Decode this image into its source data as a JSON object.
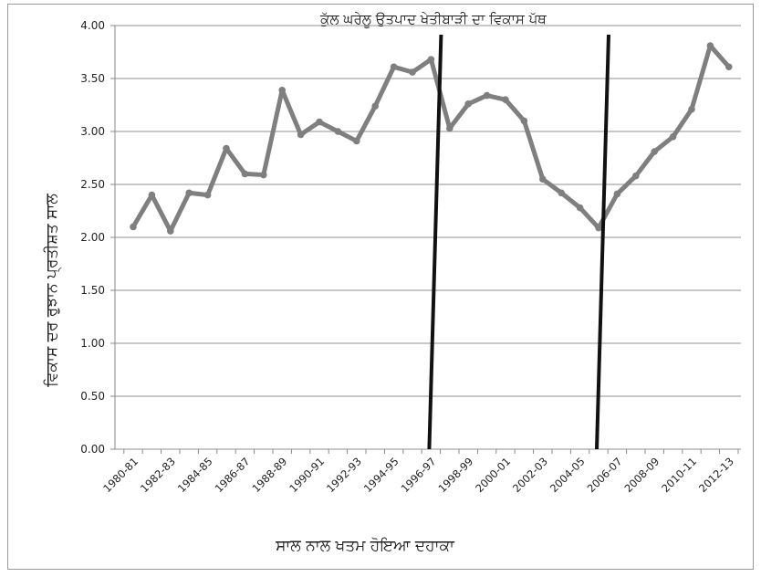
{
  "chart_data": {
    "type": "line",
    "title": "ਕੁੱਲ ਘਰੇਲੂ ਉਤਪਾਦ ਖੇਤੀਬਾੜੀ ਦਾ ਵਿਕਾਸ ਪੱਥ",
    "xlabel": "ਸਾਲ ਨਾਲ ਖਤਮ ਹੋਇਆ ਦਹਾਕਾ",
    "ylabel": "ਵਿਕਾਸ ਦਰ ਰੁਝਾਨ ਪ੍ਰਤੀਸ਼ਤ ਸਾਲ",
    "ylim": [
      0,
      4
    ],
    "yticks": [
      "0.00",
      "0.50",
      "1.00",
      "1.50",
      "2.00",
      "2.50",
      "3.00",
      "3.50",
      "4.00"
    ],
    "x_tick_labels": [
      "1980-81",
      "1982-83",
      "1984-85",
      "1986-87",
      "1988-89",
      "1990-91",
      "1992-93",
      "1994-95",
      "1996-97",
      "1998-99",
      "2000-01",
      "2002-03",
      "2004-05",
      "2006-07",
      "2008-09",
      "2010-11",
      "2012-13"
    ],
    "categories": [
      "1980-81",
      "1981-82",
      "1982-83",
      "1983-84",
      "1984-85",
      "1985-86",
      "1986-87",
      "1987-88",
      "1988-89",
      "1989-90",
      "1990-91",
      "1991-92",
      "1992-93",
      "1993-94",
      "1994-95",
      "1995-96",
      "1996-97",
      "1997-98",
      "1998-99",
      "1999-00",
      "2000-01",
      "2001-02",
      "2002-03",
      "2003-04",
      "2004-05",
      "2005-06",
      "2006-07",
      "2007-08",
      "2008-09",
      "2009-10",
      "2010-11",
      "2011-12",
      "2012-13"
    ],
    "series": [
      {
        "name": "",
        "values": [
          2.1,
          2.4,
          2.06,
          2.42,
          2.4,
          2.84,
          2.6,
          2.59,
          3.39,
          2.97,
          3.09,
          3.0,
          2.91,
          3.24,
          3.61,
          3.56,
          3.68,
          3.03,
          3.26,
          3.34,
          3.3,
          3.1,
          2.55,
          2.42,
          2.28,
          2.09,
          2.41,
          2.58,
          2.81,
          2.95,
          3.21,
          3.81,
          3.61
        ]
      }
    ],
    "markers": {
      "categories": [
        "1996-97",
        "2005-06"
      ]
    },
    "grid": true,
    "line_color": "#7f7f7f",
    "marker_line_color": "#111111"
  }
}
